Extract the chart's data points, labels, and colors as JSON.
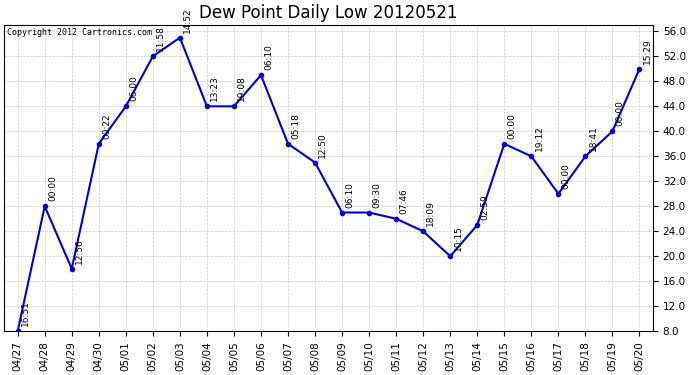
{
  "title": "Dew Point Daily Low 20120521",
  "copyright": "Copyright 2012 Cartronics.com",
  "x_labels": [
    "04/27",
    "04/28",
    "04/29",
    "04/30",
    "05/01",
    "05/02",
    "05/03",
    "05/04",
    "05/05",
    "05/06",
    "05/07",
    "05/08",
    "05/09",
    "05/10",
    "05/11",
    "05/12",
    "05/13",
    "05/14",
    "05/15",
    "05/16",
    "05/17",
    "05/18",
    "05/19",
    "05/20"
  ],
  "y_values": [
    8.0,
    28.0,
    18.0,
    38.0,
    44.0,
    52.0,
    55.0,
    44.0,
    44.0,
    49.0,
    38.0,
    35.0,
    27.0,
    27.0,
    26.0,
    24.0,
    20.0,
    25.0,
    38.0,
    36.0,
    30.0,
    36.0,
    40.0,
    50.0
  ],
  "time_labels": [
    "16:51",
    "00:00",
    "12:56",
    "00:22",
    "06:00",
    "11:58",
    "14:52",
    "13:23",
    "19:08",
    "06:10",
    "05:18",
    "12:50",
    "06:10",
    "09:30",
    "07:46",
    "18:09",
    "10:15",
    "02:59",
    "00:00",
    "19:12",
    "00:00",
    "18:41",
    "00:00",
    "15:29"
  ],
  "ylim_min": 8.0,
  "ylim_max": 57.0,
  "ytick_min": 8.0,
  "ytick_max": 56.0,
  "ytick_step": 4.0,
  "line_color": "#0000cc",
  "marker_color": "#0000cc",
  "bg_color": "#ffffff",
  "grid_color": "#bbbbbb",
  "title_fontsize": 12,
  "annot_fontsize": 6.5,
  "tick_fontsize": 7.5
}
